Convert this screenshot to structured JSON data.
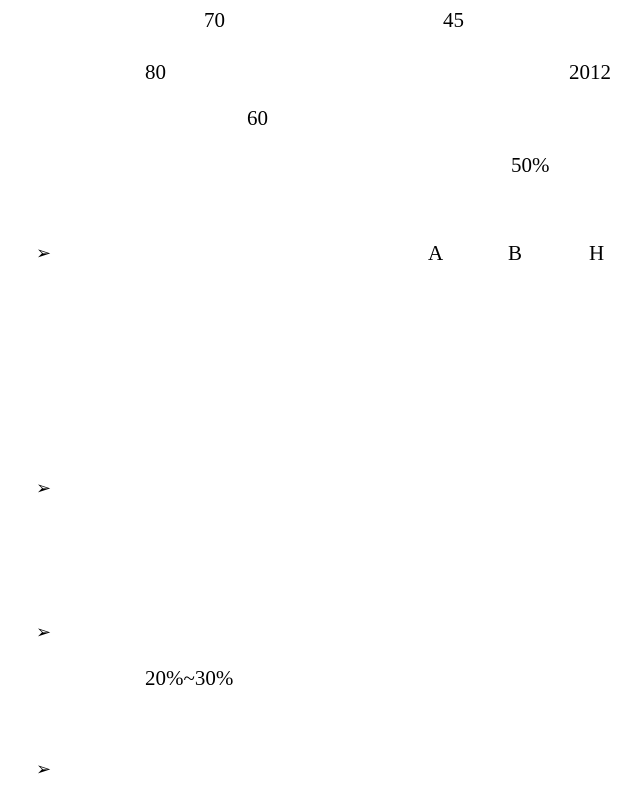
{
  "paragraph_1": {
    "line_1_value_a": "70",
    "line_1_value_b": "45",
    "line_2_value_a": "80",
    "line_2_value_b": "2012",
    "line_3_value": "60",
    "line_4_value": "50%"
  },
  "bullet_list": {
    "bullet_glyph": "➢",
    "item_1": {
      "label_a": "A",
      "label_b": "B",
      "label_h": "H"
    },
    "item_3": {
      "range_text": "20%~30%"
    }
  }
}
